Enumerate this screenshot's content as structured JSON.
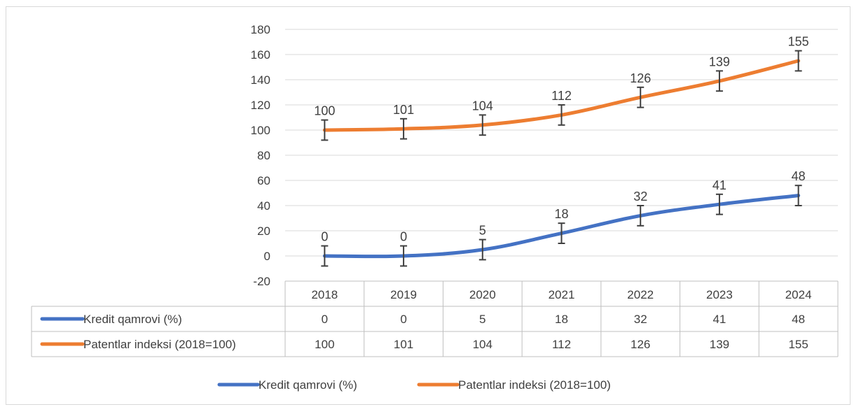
{
  "chart_data": {
    "type": "line",
    "categories": [
      "2018",
      "2019",
      "2020",
      "2021",
      "2022",
      "2023",
      "2024"
    ],
    "series": [
      {
        "name": "Kredit qamrovi (%)",
        "values": [
          0,
          0,
          5,
          18,
          32,
          41,
          48
        ],
        "color": "#4472c4"
      },
      {
        "name": "Patentlar indeksi (2018=100)",
        "values": [
          100,
          101,
          104,
          112,
          126,
          139,
          155
        ],
        "color": "#ed7d31"
      }
    ],
    "error_bar": 8,
    "y_ticks": [
      180,
      160,
      140,
      120,
      100,
      80,
      60,
      40,
      20,
      0,
      -20
    ],
    "ylim": [
      -20,
      180
    ],
    "grid": true,
    "data_table": true,
    "legend_position": "bottom",
    "title": "",
    "xlabel": "",
    "ylabel": ""
  }
}
